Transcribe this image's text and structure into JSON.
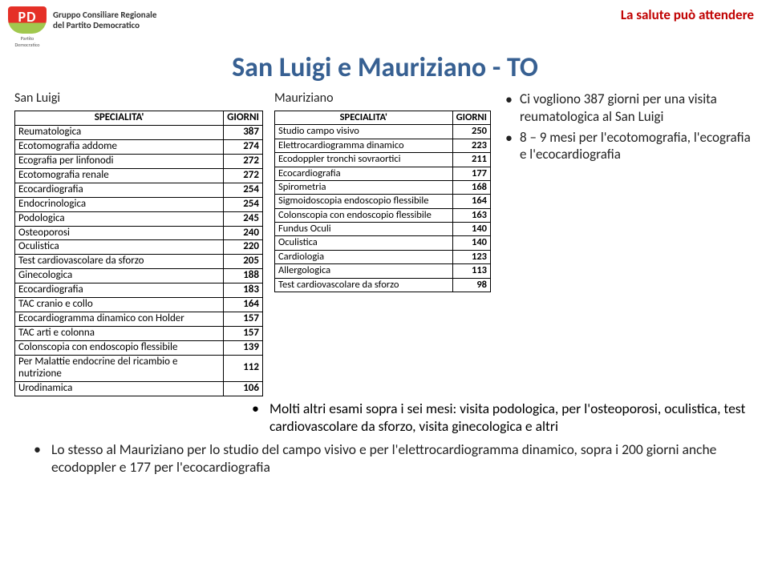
{
  "header": {
    "logo_text": "PD",
    "logo_sub": "Partito Democratico",
    "org_line1": "Gruppo Consiliare Regionale",
    "org_line2": "del Partito Democratico",
    "right_text": "La salute può attendere"
  },
  "title": "San Luigi e Mauriziano - TO",
  "left": {
    "subtitle": "San Luigi",
    "columns": [
      "SPECIALITA'",
      "GIORNI"
    ],
    "rows": [
      [
        "Reumatologica",
        "387"
      ],
      [
        "Ecotomografia addome",
        "274"
      ],
      [
        "Ecografia per linfonodi",
        "272"
      ],
      [
        "Ecotomografia renale",
        "272"
      ],
      [
        "Ecocardiografia",
        "254"
      ],
      [
        "Endocrinologica",
        "254"
      ],
      [
        "Podologica",
        "245"
      ],
      [
        "Osteoporosi",
        "240"
      ],
      [
        "Oculistica",
        "220"
      ],
      [
        "Test cardiovascolare da sforzo",
        "205"
      ],
      [
        "Ginecologica",
        "188"
      ],
      [
        "Ecocardiografia",
        "183"
      ],
      [
        "TAC cranio e collo",
        "164"
      ],
      [
        "Ecocardiogramma dinamico con Holder",
        "157"
      ],
      [
        "TAC arti e colonna",
        "157"
      ],
      [
        "Colonscopia con endoscopio flessibile",
        "139"
      ],
      [
        "Per Malattie endocrine del ricambio e nutrizione",
        "112"
      ],
      [
        "Urodinamica",
        "106"
      ]
    ]
  },
  "mid": {
    "subtitle": "Mauriziano",
    "columns": [
      "SPECIALITA'",
      "GIORNI"
    ],
    "rows": [
      [
        "Studio campo visivo",
        "250"
      ],
      [
        "Elettrocardiogramma dinamico",
        "223"
      ],
      [
        "Ecodoppler tronchi sovraortici",
        "211"
      ],
      [
        "Ecocardiografia",
        "177"
      ],
      [
        "Spirometria",
        "168"
      ],
      [
        "Sigmoidoscopia endoscopio flessibile",
        "164"
      ],
      [
        "Colonscopia con endoscopio flessibile",
        "163"
      ],
      [
        "Fundus Oculi",
        "140"
      ],
      [
        "Oculistica",
        "140"
      ],
      [
        "Cardiologia",
        "123"
      ],
      [
        "Allergologica",
        "113"
      ],
      [
        "Test cardiovascolare da sforzo",
        "98"
      ]
    ]
  },
  "right_bullets": [
    "Ci vogliono 387 giorni per una visita reumatologica al San Luigi",
    "8 – 9 mesi per l'ecotomografia, l'ecografia e l'ecocardiografia"
  ],
  "wide_bullet": "Molti altri esami sopra i sei mesi: visita podologica, per l'osteoporosi, oculistica, test cardiovascolare da sforzo, visita ginecologica e altri",
  "lower_bullet": "Lo stesso al Mauriziano per lo studio del campo visivo e per l'elettrocardiogramma dinamico, sopra i 200 giorni anche ecodoppler e 177 per l'ecocardiografia",
  "colors": {
    "title": "#376092",
    "header_right": "#c00000",
    "logo_red": "#e53027",
    "logo_green": "#a1c84e",
    "border": "#000000",
    "bg": "#ffffff"
  },
  "typography": {
    "title_size": 34,
    "body_size": 17,
    "table_size": 13
  }
}
